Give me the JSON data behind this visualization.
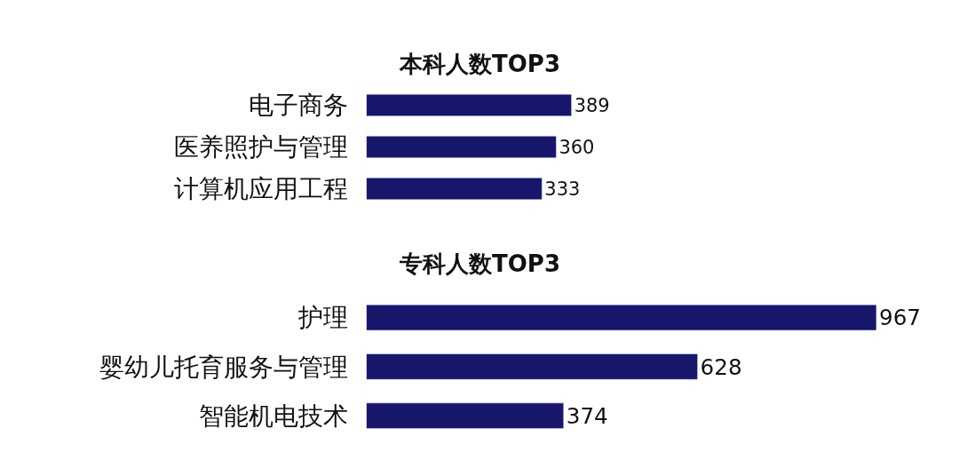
{
  "chart_data": [
    {
      "type": "bar",
      "orientation": "horizontal",
      "title": "本科人数TOP3",
      "categories": [
        "电子商务",
        "医养照护与管理",
        "计算机应用工程"
      ],
      "values": [
        389,
        360,
        333
      ],
      "color": "#16166b",
      "data_labels": true,
      "tick_labels": "y"
    },
    {
      "type": "bar",
      "orientation": "horizontal",
      "title": "专科人数TOP3",
      "categories": [
        "护理",
        "婴幼儿托育服务与管理",
        "智能机电技术"
      ],
      "values": [
        967,
        628,
        374
      ],
      "color": "#16166b",
      "data_labels": true,
      "tick_labels": "y"
    }
  ]
}
